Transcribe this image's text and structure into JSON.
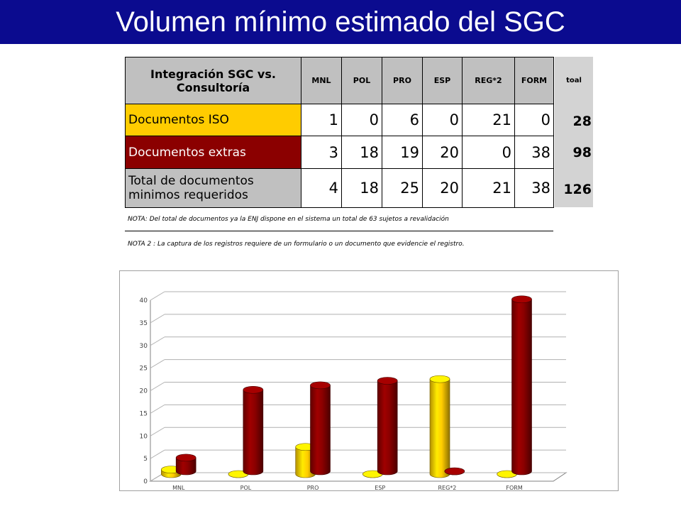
{
  "title": "Volumen mínimo estimado del SGC",
  "table": {
    "header_main": [
      "Integración SGC vs.",
      "Consultoría"
    ],
    "columns": [
      "MNL",
      "POL",
      "PRO",
      "ESP",
      "REG*2",
      "FORM"
    ],
    "total_header": "toal",
    "rows": [
      {
        "label": [
          "Documentos ISO"
        ],
        "values": [
          1,
          0,
          6,
          0,
          21,
          0
        ],
        "total": 28
      },
      {
        "label": [
          "Documentos extras"
        ],
        "values": [
          3,
          18,
          19,
          20,
          0,
          38
        ],
        "total": 98
      },
      {
        "label": [
          "Total de documentos",
          "minimos requeridos"
        ],
        "values": [
          4,
          18,
          25,
          20,
          21,
          38
        ],
        "total": 126
      }
    ]
  },
  "notes": [
    "NOTA:  Del total de documentos ya la ENJ dispone en el sistema  un total de 63 sujetos a revalidación",
    "NOTA 2 :  La captura de los registros requiere de un formulario o un documento que evidencie el registro."
  ],
  "colors": {
    "title_bg": "#0b0b8f",
    "iso": "#ffcc00",
    "extras": "#8b0000",
    "header_gray": "#c0c0c0"
  },
  "chart_data": {
    "type": "bar",
    "categories": [
      "MNL",
      "POL",
      "PRO",
      "ESP",
      "REG*2",
      "FORM"
    ],
    "series": [
      {
        "name": "",
        "values": [
          1,
          0,
          6,
          0,
          21,
          0
        ],
        "color": "#ffcc00"
      },
      {
        "name": "",
        "values": [
          3,
          18,
          19,
          20,
          0,
          38
        ],
        "color": "#8b0000"
      }
    ],
    "yticks": [
      0,
      5,
      10,
      15,
      20,
      25,
      30,
      35,
      40
    ],
    "ylim": [
      0,
      40
    ],
    "grid": true,
    "legend": "none",
    "style": "3d-cylinder"
  }
}
